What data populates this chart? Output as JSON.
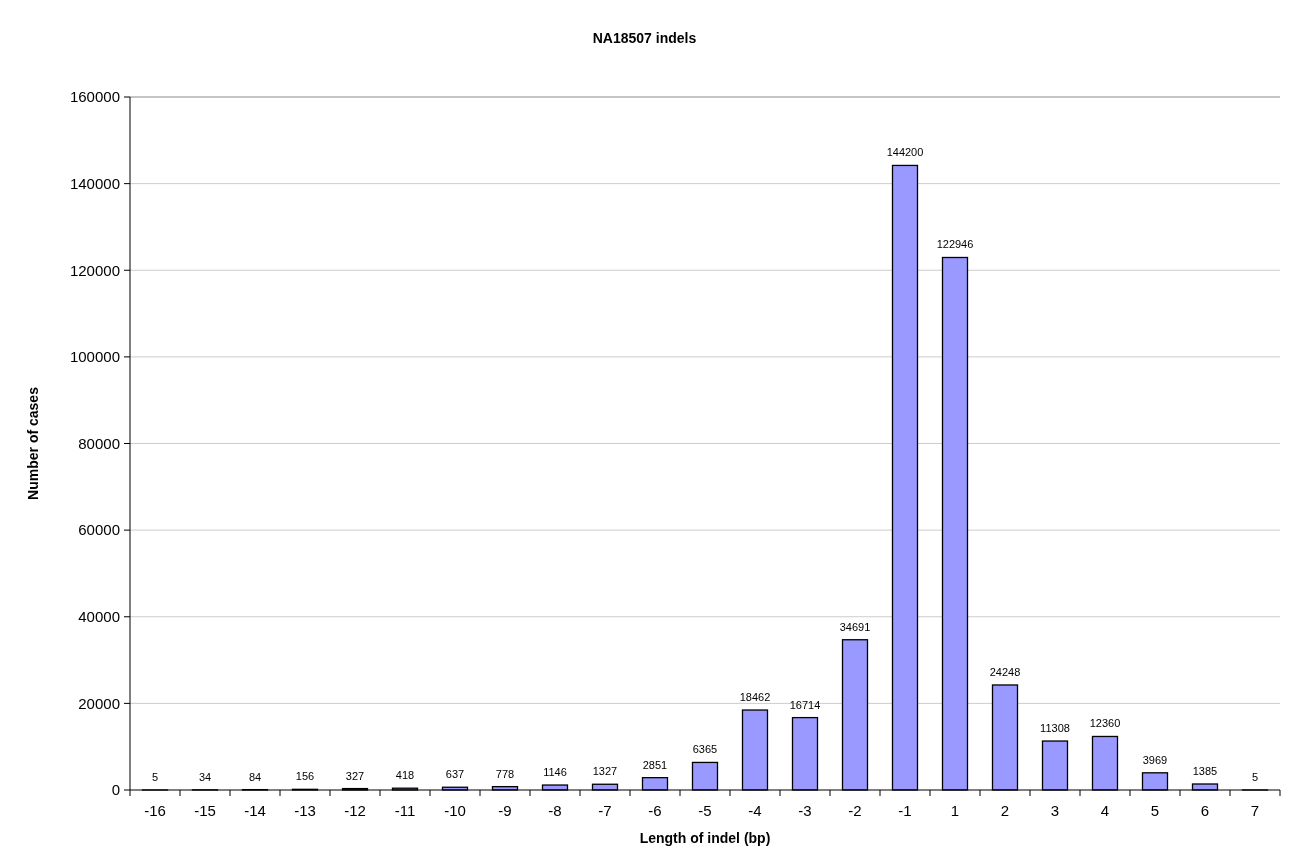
{
  "chart_data": {
    "type": "bar",
    "title": "NA18507 indels",
    "xlabel": "Length of indel (bp)",
    "ylabel": "Number of cases",
    "categories": [
      "-16",
      "-15",
      "-14",
      "-13",
      "-12",
      "-11",
      "-10",
      "-9",
      "-8",
      "-7",
      "-6",
      "-5",
      "-4",
      "-3",
      "-2",
      "-1",
      "1",
      "2",
      "3",
      "4",
      "5",
      "6",
      "7"
    ],
    "values": [
      5,
      34,
      84,
      156,
      327,
      418,
      637,
      778,
      1146,
      1327,
      2851,
      6365,
      18462,
      16714,
      34691,
      144200,
      122946,
      24248,
      11308,
      12360,
      3969,
      1385,
      5
    ],
    "color": "#9999ff",
    "ylim": [
      0,
      160000
    ],
    "yticks": [
      0,
      20000,
      40000,
      60000,
      80000,
      100000,
      120000,
      140000,
      160000
    ],
    "grid": "y",
    "data_labels": true
  }
}
